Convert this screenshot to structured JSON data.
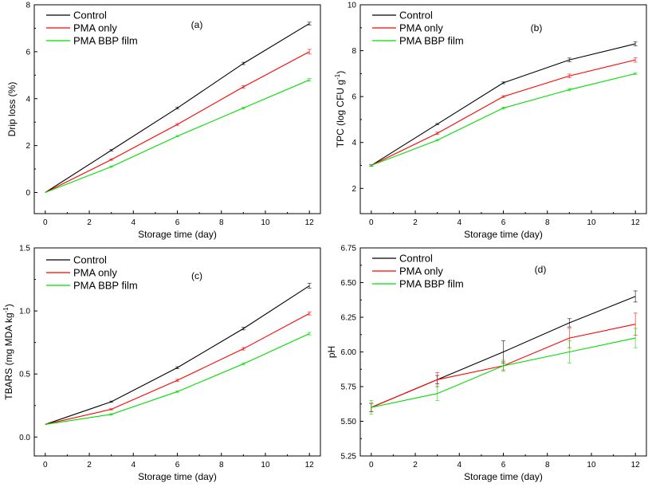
{
  "chart_data": [
    {
      "type": "line",
      "panel_label": "(a)",
      "xlabel": "Storage time (day)",
      "ylabel": "Drip loss (%)",
      "ylabel_sup": "",
      "ylabel_tail": "",
      "xlim": [
        -0.5,
        12.5
      ],
      "ylim": [
        -0.9,
        8
      ],
      "xticks": [
        0,
        2,
        4,
        6,
        8,
        10,
        12
      ],
      "xtick_labels": [
        "0",
        "2",
        "4",
        "6",
        "8",
        "10",
        "12"
      ],
      "yticks": [
        0,
        2,
        4,
        6,
        8
      ],
      "ytick_labels": [
        "0",
        "2",
        "4",
        "6",
        "8"
      ],
      "x": [
        0,
        3,
        6,
        9,
        12
      ],
      "legend_position": "top-left",
      "series": [
        {
          "name": "Control",
          "color": "#000000",
          "values": [
            0,
            1.8,
            3.6,
            5.5,
            7.2
          ],
          "errors": [
            0,
            0.03,
            0.04,
            0.05,
            0.06
          ]
        },
        {
          "name": "PMA only",
          "color": "#ff0000",
          "values": [
            0,
            1.4,
            2.9,
            4.5,
            6.0
          ],
          "errors": [
            0,
            0.03,
            0.04,
            0.05,
            0.1
          ]
        },
        {
          "name": "PMA BBP film",
          "color": "#00dd00",
          "values": [
            0,
            1.1,
            2.4,
            3.6,
            4.8
          ],
          "errors": [
            0,
            0.03,
            0.03,
            0.04,
            0.06
          ]
        }
      ]
    },
    {
      "type": "line",
      "panel_label": "(b)",
      "xlabel": "Storage time (day)",
      "ylabel": "TPC (log CFU g",
      "ylabel_sup": "-1",
      "ylabel_tail": ")",
      "xlim": [
        -0.5,
        12.5
      ],
      "ylim": [
        0.9,
        10
      ],
      "xticks": [
        0,
        2,
        4,
        6,
        8,
        10,
        12
      ],
      "xtick_labels": [
        "0",
        "2",
        "4",
        "6",
        "8",
        "10",
        "12"
      ],
      "yticks": [
        2,
        4,
        6,
        8,
        10
      ],
      "ytick_labels": [
        "2",
        "4",
        "6",
        "8",
        "10"
      ],
      "x": [
        0,
        3,
        6,
        9,
        12
      ],
      "legend_position": "top-left",
      "series": [
        {
          "name": "Control",
          "color": "#000000",
          "values": [
            3.0,
            4.8,
            6.6,
            7.6,
            8.3
          ],
          "errors": [
            0.03,
            0.03,
            0.04,
            0.08,
            0.09
          ]
        },
        {
          "name": "PMA only",
          "color": "#ff0000",
          "values": [
            3.0,
            4.4,
            6.0,
            6.9,
            7.6
          ],
          "errors": [
            0.03,
            0.05,
            0.04,
            0.08,
            0.1
          ]
        },
        {
          "name": "PMA BBP film",
          "color": "#00dd00",
          "values": [
            3.0,
            4.1,
            5.5,
            6.3,
            7.0
          ],
          "errors": [
            0.03,
            0.03,
            0.04,
            0.05,
            0.04
          ]
        }
      ]
    },
    {
      "type": "line",
      "panel_label": "(c)",
      "xlabel": "Storage time (day)",
      "ylabel": "TBARS (mg MDA kg",
      "ylabel_sup": "-1",
      "ylabel_tail": ")",
      "xlim": [
        -0.5,
        12.5
      ],
      "ylim": [
        -0.15,
        1.5
      ],
      "xticks": [
        0,
        2,
        4,
        6,
        8,
        10,
        12
      ],
      "xtick_labels": [
        "0",
        "2",
        "4",
        "6",
        "8",
        "10",
        "12"
      ],
      "yticks": [
        0,
        0.5,
        1.0,
        1.5
      ],
      "ytick_labels": [
        "0.0",
        "0.5",
        "1.0",
        "1.5"
      ],
      "x": [
        0,
        3,
        6,
        9,
        12
      ],
      "legend_position": "top-left",
      "series": [
        {
          "name": "Control",
          "color": "#000000",
          "values": [
            0.1,
            0.28,
            0.55,
            0.86,
            1.2
          ],
          "errors": [
            0,
            0.005,
            0.008,
            0.01,
            0.02
          ]
        },
        {
          "name": "PMA only",
          "color": "#ff0000",
          "values": [
            0.1,
            0.22,
            0.45,
            0.7,
            0.98
          ],
          "errors": [
            0,
            0.005,
            0.008,
            0.01,
            0.012
          ]
        },
        {
          "name": "PMA BBP film",
          "color": "#00dd00",
          "values": [
            0.1,
            0.18,
            0.36,
            0.58,
            0.82
          ],
          "errors": [
            0,
            0.005,
            0.006,
            0.008,
            0.01
          ]
        }
      ]
    },
    {
      "type": "line",
      "panel_label": "(d)",
      "xlabel": "Storage time (day)",
      "ylabel": "pH",
      "ylabel_sup": "",
      "ylabel_tail": "",
      "xlim": [
        -0.5,
        12.5
      ],
      "ylim": [
        5.25,
        6.75
      ],
      "xticks": [
        0,
        2,
        4,
        6,
        8,
        10,
        12
      ],
      "xtick_labels": [
        "0",
        "2",
        "4",
        "6",
        "8",
        "10",
        "12"
      ],
      "yticks": [
        5.25,
        5.5,
        5.75,
        6.0,
        6.25,
        6.5,
        6.75
      ],
      "ytick_labels": [
        "5.25",
        "5.50",
        "5.75",
        "6.00",
        "6.25",
        "6.50",
        "6.75"
      ],
      "x": [
        0,
        3,
        6,
        9,
        12
      ],
      "legend_position": "top-left",
      "series": [
        {
          "name": "Control",
          "color": "#000000",
          "values": [
            5.6,
            5.8,
            6.0,
            6.21,
            6.4
          ],
          "errors": [
            0.03,
            0.03,
            0.08,
            0.03,
            0.04
          ]
        },
        {
          "name": "PMA only",
          "color": "#ff0000",
          "values": [
            5.6,
            5.8,
            5.9,
            6.1,
            6.2
          ],
          "errors": [
            0.03,
            0.05,
            0.03,
            0.07,
            0.08
          ]
        },
        {
          "name": "PMA BBP film",
          "color": "#00dd00",
          "values": [
            5.6,
            5.7,
            5.9,
            6.0,
            6.1
          ],
          "errors": [
            0.05,
            0.05,
            0.04,
            0.08,
            0.07
          ]
        }
      ]
    }
  ]
}
